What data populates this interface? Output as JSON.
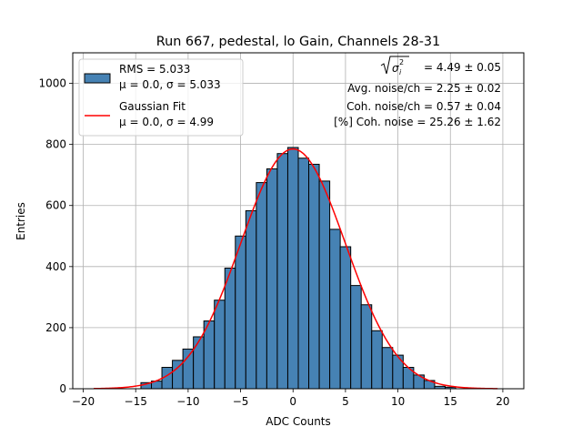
{
  "chart_data": {
    "type": "bar",
    "title": "Run 667, pedestal, lo Gain, Channels 28-31",
    "xlabel": "ADC Counts",
    "ylabel": "Entries",
    "xlim": [
      -21,
      22
    ],
    "ylim": [
      0,
      1100
    ],
    "grid": true,
    "x_ticks": [
      -20,
      -15,
      -10,
      -5,
      0,
      5,
      10,
      15,
      20
    ],
    "y_ticks": [
      0,
      200,
      400,
      600,
      800,
      1000
    ],
    "bin_width": 1,
    "bins": [
      {
        "x": -14,
        "y": 20
      },
      {
        "x": -13,
        "y": 25
      },
      {
        "x": -12,
        "y": 70
      },
      {
        "x": -11,
        "y": 93
      },
      {
        "x": -10,
        "y": 130
      },
      {
        "x": -9,
        "y": 170
      },
      {
        "x": -8,
        "y": 222
      },
      {
        "x": -7,
        "y": 290
      },
      {
        "x": -6,
        "y": 395
      },
      {
        "x": -5,
        "y": 500
      },
      {
        "x": -4,
        "y": 583
      },
      {
        "x": -3,
        "y": 675
      },
      {
        "x": -2,
        "y": 720
      },
      {
        "x": -1,
        "y": 770
      },
      {
        "x": 0,
        "y": 790
      },
      {
        "x": 1,
        "y": 755
      },
      {
        "x": 2,
        "y": 735
      },
      {
        "x": 3,
        "y": 680
      },
      {
        "x": 4,
        "y": 522
      },
      {
        "x": 5,
        "y": 465
      },
      {
        "x": 6,
        "y": 338
      },
      {
        "x": 7,
        "y": 275
      },
      {
        "x": 8,
        "y": 190
      },
      {
        "x": 9,
        "y": 135
      },
      {
        "x": 10,
        "y": 110
      },
      {
        "x": 11,
        "y": 70
      },
      {
        "x": 12,
        "y": 45
      },
      {
        "x": 13,
        "y": 27
      },
      {
        "x": 14,
        "y": 8
      },
      {
        "x": 15,
        "y": 5
      }
    ],
    "fit": {
      "mu": 0.0,
      "sigma": 4.99,
      "amplitude": 785,
      "x_range": [
        -19,
        19.5
      ]
    },
    "bar_color": "#4682b4",
    "fit_color": "#ff0000",
    "legend": {
      "position": "top-left",
      "entries": [
        {
          "lines": [
            "RMS = 5.033",
            "μ = 0.0, σ = 5.033"
          ],
          "kind": "patch"
        },
        {
          "lines": [
            "Gaussian Fit",
            "μ = 0.0, σ = 4.99"
          ],
          "kind": "line"
        }
      ]
    },
    "annotations": {
      "sigma_value": " = 4.49 ± 0.05",
      "lines": [
        "Avg. noise/ch = 2.25 ± 0.02",
        "Coh. noise/ch = 0.57 ± 0.04",
        "[%] Coh. noise = 25.26 ± 1.62"
      ]
    }
  }
}
